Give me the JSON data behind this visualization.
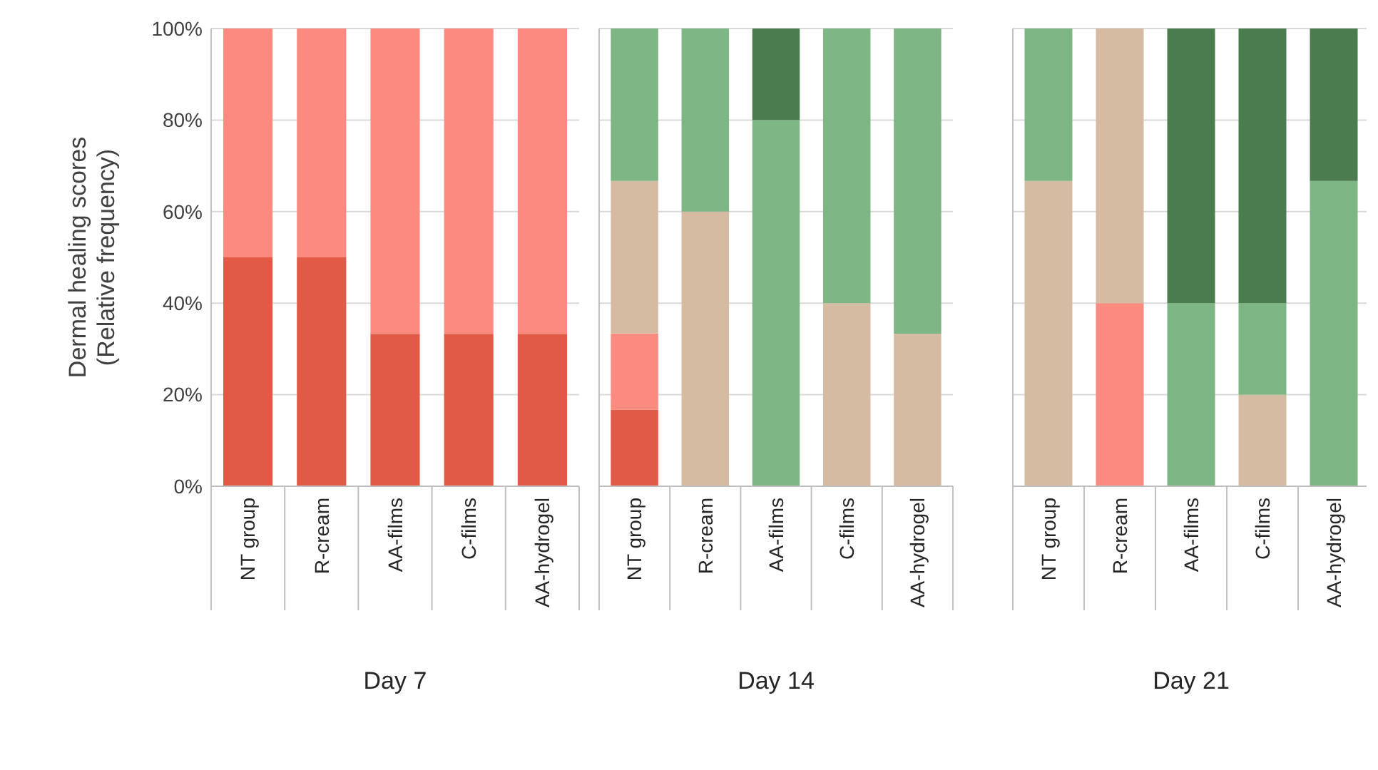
{
  "chart_data": [
    {
      "type": "bar",
      "stacked": true,
      "ylabel": "Dermal healing scores (Relative frequency)",
      "xlabel": "Day 7",
      "categories": [
        "NT group",
        "R-cream",
        "AA-films",
        "C-films",
        "AA-hydrogel"
      ],
      "ylim": [
        0,
        100
      ],
      "yticks": [
        {
          "value": 0,
          "label": "0%"
        },
        {
          "value": 20,
          "label": "20%"
        },
        {
          "value": 40,
          "label": "40%"
        },
        {
          "value": 60,
          "label": "60%"
        },
        {
          "value": 80,
          "label": "80%"
        },
        {
          "value": 100,
          "label": "100%"
        }
      ],
      "grid": "y",
      "series": [
        {
          "color": "#e05a45",
          "values": [
            50,
            50,
            33.3,
            33.3,
            33.3
          ]
        },
        {
          "color": "#fb8a80",
          "values": [
            50,
            50,
            66.7,
            66.7,
            66.7
          ]
        }
      ]
    },
    {
      "type": "bar",
      "stacked": true,
      "xlabel": "Day 14",
      "categories": [
        "NT group",
        "R-cream",
        "AA-films",
        "C-films",
        "AA-hydrogel"
      ],
      "ylim": [
        0,
        100
      ],
      "yticks": [
        {
          "value": 0,
          "label": null
        },
        {
          "value": 20,
          "label": null
        },
        {
          "value": 40,
          "label": null
        },
        {
          "value": 60,
          "label": null
        },
        {
          "value": 80,
          "label": null
        },
        {
          "value": 100,
          "label": null
        }
      ],
      "grid": "y",
      "tick_labels": "x",
      "series": [
        {
          "color": "#e05a45",
          "values": [
            16.7,
            null,
            null,
            null,
            null
          ]
        },
        {
          "color": "#fb8a80",
          "values": [
            16.7,
            null,
            null,
            null,
            null
          ]
        },
        {
          "color": "#d6bba3",
          "values": [
            33.3,
            60,
            null,
            40,
            33.3
          ]
        },
        {
          "color": "#7db585",
          "values": [
            33.3,
            40,
            80,
            60,
            66.7
          ]
        },
        {
          "color": "#4a7c4f",
          "values": [
            null,
            null,
            20,
            null,
            null
          ]
        }
      ]
    },
    {
      "type": "bar",
      "stacked": true,
      "xlabel": "Day 21",
      "categories": [
        "NT group",
        "R-cream",
        "AA-films",
        "C-films",
        "AA-hydrogel"
      ],
      "ylim": [
        0,
        100
      ],
      "yticks": [
        {
          "value": 0,
          "label": null
        },
        {
          "value": 20,
          "label": null
        },
        {
          "value": 40,
          "label": null
        },
        {
          "value": 60,
          "label": null
        },
        {
          "value": 80,
          "label": null
        },
        {
          "value": 100,
          "label": null
        }
      ],
      "grid": "y",
      "tick_labels": "x",
      "series": [
        {
          "color": "#fb8a80",
          "values": [
            null,
            40,
            null,
            null,
            null
          ]
        },
        {
          "color": "#d6bba3",
          "values": [
            66.7,
            60,
            null,
            20,
            null
          ]
        },
        {
          "color": "#7db585",
          "values": [
            33.3,
            null,
            40,
            20,
            66.7
          ]
        },
        {
          "color": "#4a7c4f",
          "values": [
            null,
            null,
            60,
            60,
            33.3
          ]
        }
      ]
    }
  ]
}
